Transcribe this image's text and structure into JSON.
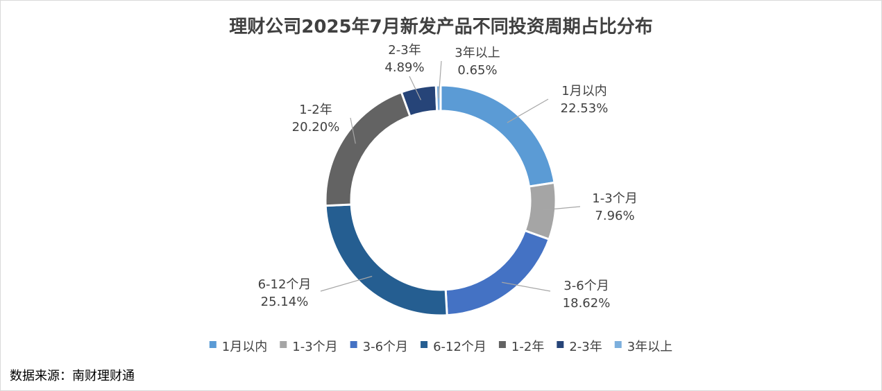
{
  "chart_data": {
    "type": "pie",
    "variant": "donut",
    "title": "理财公司2025年7月新发产品不同投资周期占比分布",
    "categories": [
      "1月以内",
      "1-3个月",
      "3-6个月",
      "6-12个月",
      "1-2年",
      "2-3年",
      "3年以上"
    ],
    "values": [
      22.53,
      7.96,
      18.62,
      25.14,
      20.2,
      4.89,
      0.65
    ],
    "value_labels": [
      "22.53%",
      "7.96%",
      "18.62%",
      "25.14%",
      "20.20%",
      "4.89%",
      "0.65%"
    ],
    "colors": [
      "#5B9BD5",
      "#A5A5A5",
      "#4472C4",
      "#255E91",
      "#636363",
      "#264478",
      "#7CAFDD"
    ],
    "legend_position": "bottom"
  },
  "source": "数据来源：南财理财通"
}
